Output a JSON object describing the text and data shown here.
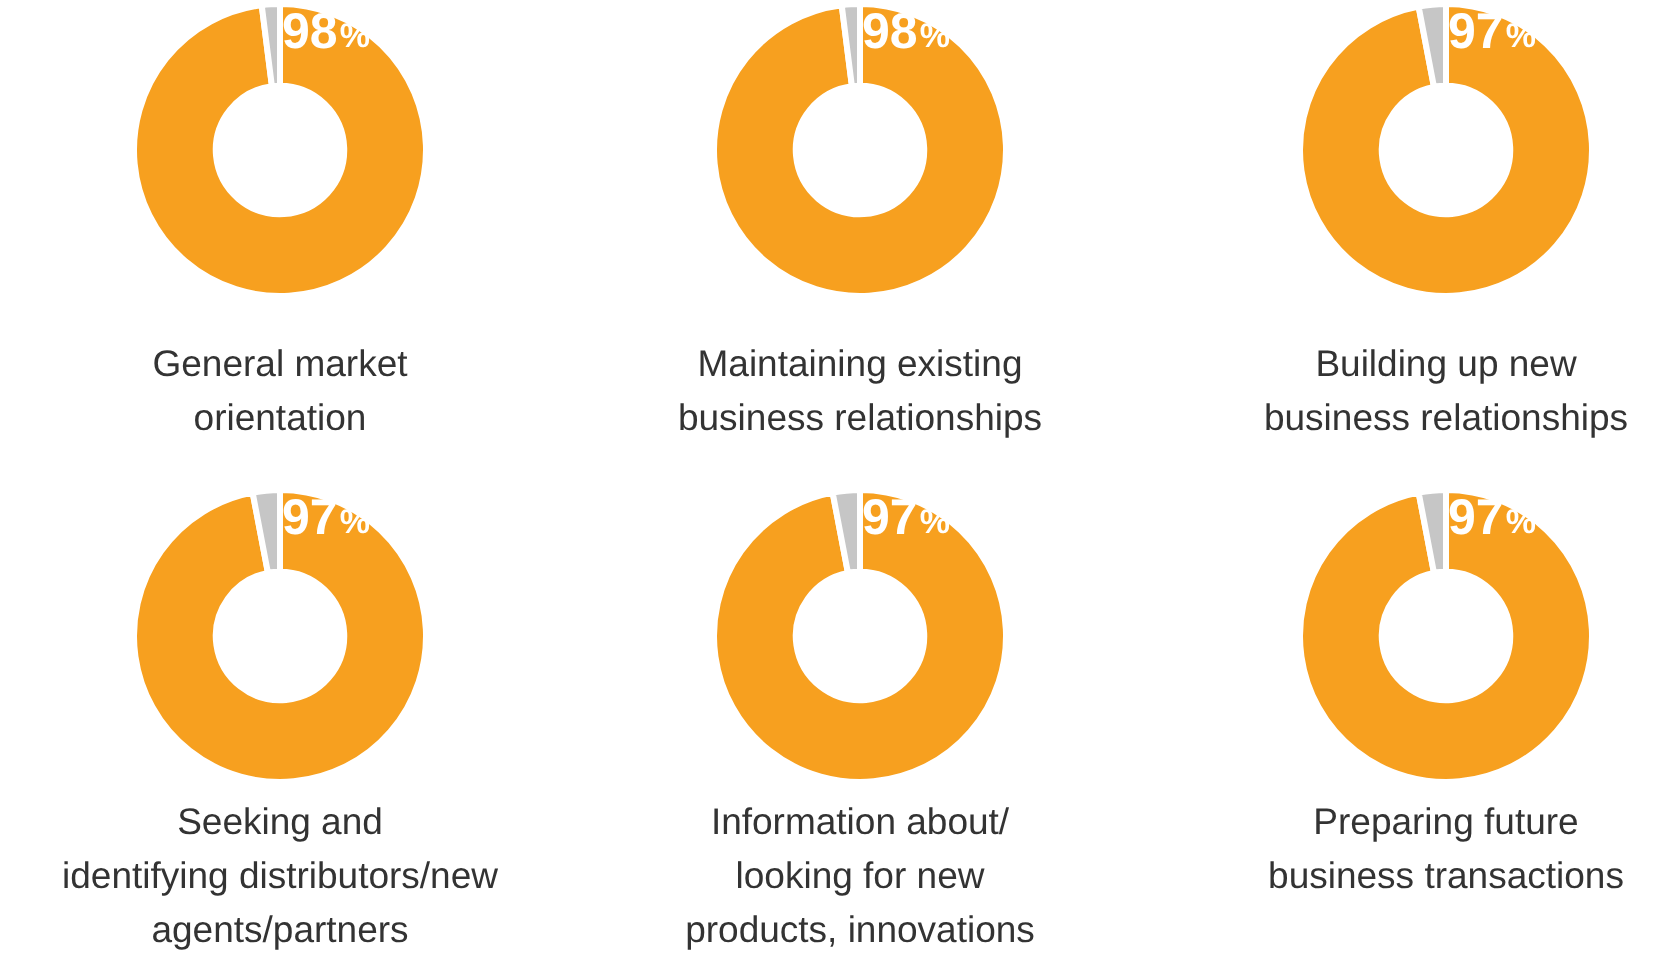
{
  "chart_data": [
    {
      "type": "donut",
      "title": "General market\norientation",
      "categories": [
        null,
        null
      ],
      "values": [
        98,
        2
      ],
      "colors": [
        "#f7a01f",
        "#c6c6c6"
      ],
      "value_labels": [
        "98%",
        null
      ]
    },
    {
      "type": "donut",
      "title": "Maintaining existing\nbusiness relationships",
      "categories": [
        null,
        null
      ],
      "values": [
        98,
        2
      ],
      "colors": [
        "#f7a01f",
        "#c6c6c6"
      ],
      "value_labels": [
        "98%",
        null
      ]
    },
    {
      "type": "donut",
      "title": "Building up new\nbusiness relationships",
      "categories": [
        null,
        null
      ],
      "values": [
        97,
        3
      ],
      "colors": [
        "#f7a01f",
        "#c6c6c6"
      ],
      "value_labels": [
        "97%",
        null
      ]
    },
    {
      "type": "donut",
      "title": "Seeking and\nidentifying distributors/new\nagents/partners",
      "categories": [
        null,
        null
      ],
      "values": [
        97,
        3
      ],
      "colors": [
        "#f7a01f",
        "#c6c6c6"
      ],
      "value_labels": [
        "97%",
        null
      ]
    },
    {
      "type": "donut",
      "title": "Information about/\nlooking for new\nproducts, innovations",
      "categories": [
        null,
        null
      ],
      "values": [
        97,
        3
      ],
      "colors": [
        "#f7a01f",
        "#c6c6c6"
      ],
      "value_labels": [
        "97%",
        null
      ]
    },
    {
      "type": "donut",
      "title": "Preparing future\nbusiness transactions",
      "categories": [
        null,
        null
      ],
      "values": [
        97,
        3
      ],
      "colors": [
        "#f7a01f",
        "#c6c6c6"
      ],
      "value_labels": [
        "97%",
        null
      ]
    }
  ]
}
